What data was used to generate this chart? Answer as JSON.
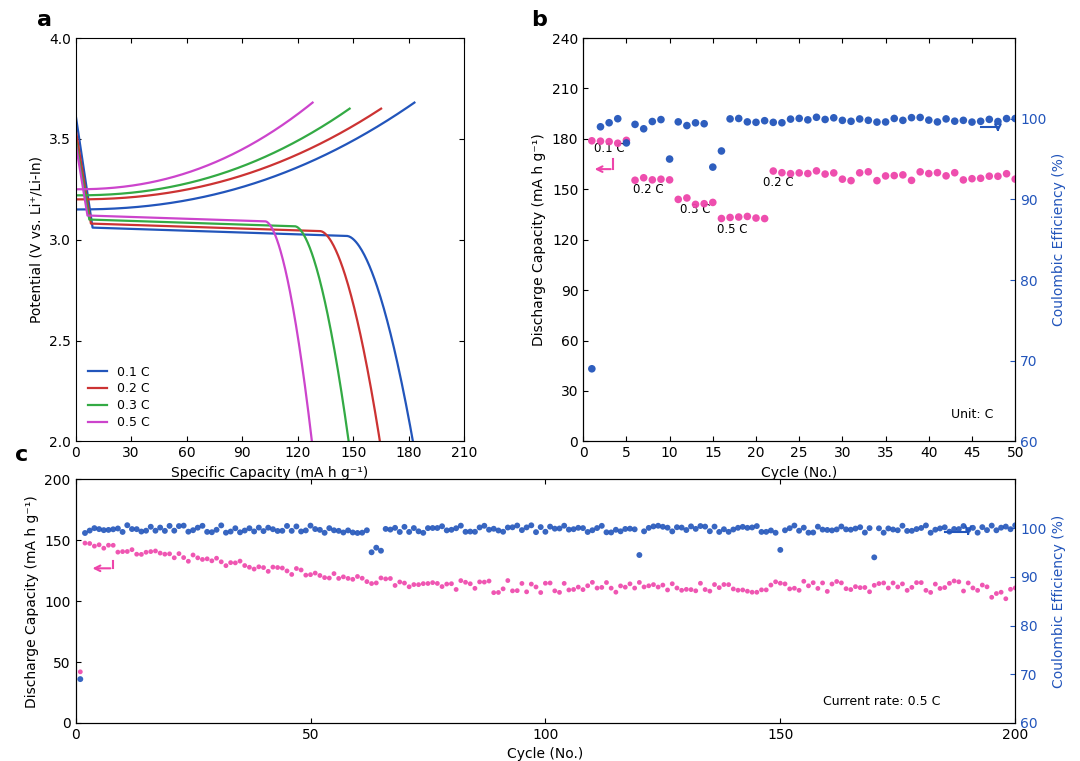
{
  "panel_a": {
    "xlabel": "Specific Capacity (mA h g⁻¹)",
    "ylabel": "Potential (V vs. Li⁺/Li-In)",
    "xlim": [
      0,
      210
    ],
    "ylim": [
      2.0,
      4.0
    ],
    "xticks": [
      0,
      30,
      60,
      90,
      120,
      150,
      180,
      210
    ],
    "yticks": [
      2.0,
      2.5,
      3.0,
      3.5,
      4.0
    ],
    "colors": {
      "0.1 C": "#2255bb",
      "0.2 C": "#cc3333",
      "0.3 C": "#33aa44",
      "0.5 C": "#cc44cc"
    },
    "legend_labels": [
      "0.1 C",
      "0.2 C",
      "0.3 C",
      "0.5 C"
    ]
  },
  "panel_b": {
    "xlabel": "Cycle (No.)",
    "ylabel_left": "Discharge Capacity (mA h g⁻¹)",
    "ylabel_right": "Coulombic Efficiency (%)",
    "xlim": [
      0,
      50
    ],
    "ylim_left": [
      0,
      240
    ],
    "ylim_right": [
      60,
      110
    ],
    "xticks": [
      0,
      5,
      10,
      15,
      20,
      25,
      30,
      35,
      40,
      45,
      50
    ],
    "yticks_left": [
      0,
      30,
      60,
      90,
      120,
      150,
      180,
      210,
      240
    ],
    "yticks_right": [
      60,
      70,
      80,
      90,
      100
    ],
    "color_capacity": "#ee44aa",
    "color_ce": "#2255bb",
    "annotation": "Unit: C"
  },
  "panel_c": {
    "xlabel": "Cycle (No.)",
    "ylabel_left": "Discharge Capacity (mA h g⁻¹)",
    "ylabel_right": "Coulombic Efficiency (%)",
    "xlim": [
      0,
      200
    ],
    "ylim_left": [
      0,
      200
    ],
    "ylim_right": [
      60,
      110
    ],
    "xticks": [
      0,
      50,
      100,
      150,
      200
    ],
    "yticks_left": [
      0,
      50,
      100,
      150,
      200
    ],
    "yticks_right": [
      60,
      70,
      80,
      90,
      100
    ],
    "color_capacity": "#ee44aa",
    "color_ce": "#2255bb",
    "annotation": "Current rate: 0.5 C"
  }
}
